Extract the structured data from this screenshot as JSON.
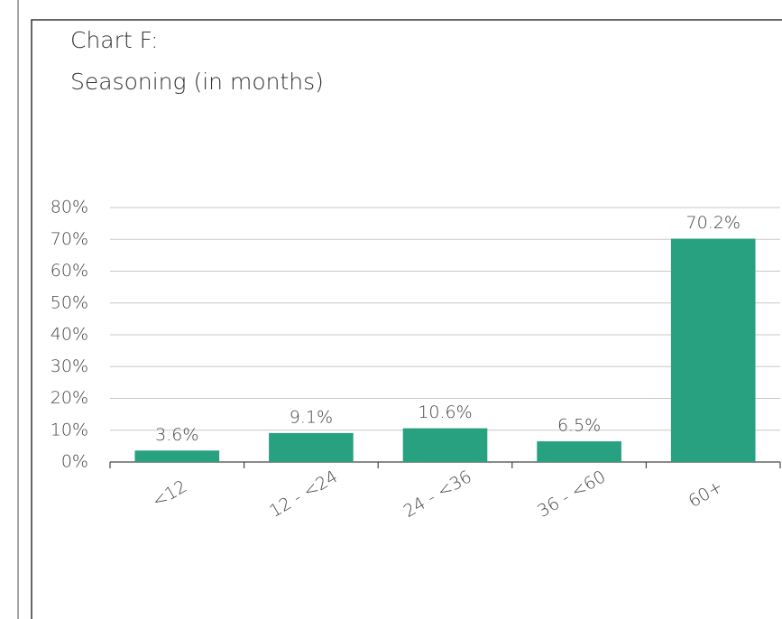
{
  "chart_data": {
    "type": "bar",
    "title": "Chart F:",
    "subtitle": "Seasoning (in months)",
    "categories": [
      "<12",
      "12 - <24",
      "24 - <36",
      "36 - <60",
      "60+"
    ],
    "values": [
      3.6,
      9.1,
      10.6,
      6.5,
      70.2
    ],
    "value_labels": [
      "3.6%",
      "9.1%",
      "10.6%",
      "6.5%",
      "70.2%"
    ],
    "color": "#27a17f",
    "ylim": [
      0,
      80
    ],
    "yticks": [
      {
        "value": 0,
        "label": "0%"
      },
      {
        "value": 10,
        "label": "10%"
      },
      {
        "value": 20,
        "label": "20%"
      },
      {
        "value": 30,
        "label": "30%"
      },
      {
        "value": 40,
        "label": "40%"
      },
      {
        "value": 50,
        "label": "50%"
      },
      {
        "value": 60,
        "label": "60%"
      },
      {
        "value": 70,
        "label": "70%"
      },
      {
        "value": 80,
        "label": "80%"
      }
    ],
    "grid": true
  }
}
